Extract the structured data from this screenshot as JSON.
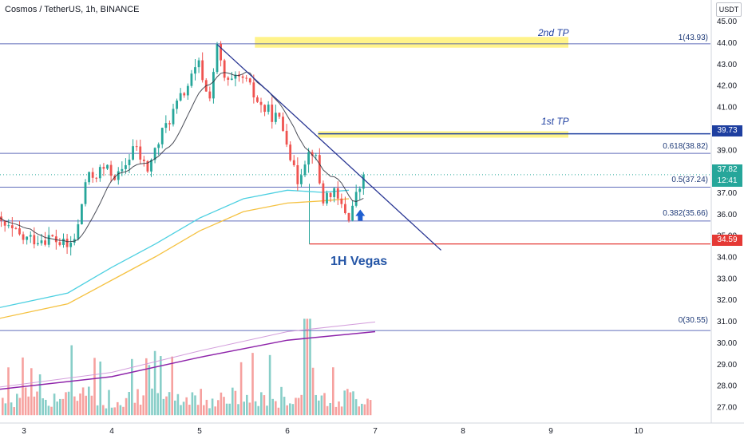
{
  "header": {
    "title": "Cosmos / TetherUS, 1h, BINANCE",
    "currency": "USDT"
  },
  "annotations": {
    "vegas": "1H Vegas",
    "tp1": "1st TP",
    "tp2": "2nd TP"
  },
  "fib_levels": [
    {
      "label": "1(43.93)",
      "price": 43.93
    },
    {
      "label": "0.618(38.82)",
      "price": 38.82
    },
    {
      "label": "0.5(37.24)",
      "price": 37.24
    },
    {
      "label": "0.382(35.66)",
      "price": 35.66
    },
    {
      "label": "0(30.55)",
      "price": 30.55
    }
  ],
  "price_tags": {
    "tp1_level": "39.73",
    "current_price": "37.82",
    "countdown": "12:41",
    "stop_level": "34.59"
  },
  "colors": {
    "bull": "#26a69a",
    "bear": "#ef5350",
    "ema_fast": "#4dd0e1",
    "ema_slow": "#f5c242",
    "fib_line": "#3949ab",
    "trendline": "#283593",
    "tp_zone": "#fff176",
    "stop_line": "#e53935",
    "vol_ma_fast": "#ce93d8",
    "vol_ma_slow": "#8e24aa"
  },
  "chart_data": {
    "type": "candlestick",
    "symbol": "Cosmos / TetherUS",
    "interval": "1h",
    "exchange": "BINANCE",
    "y_axis": {
      "ticks": [
        "45.00",
        "44.00",
        "43.00",
        "42.00",
        "41.00",
        "40.00",
        "39.00",
        "38.00",
        "37.00",
        "36.00",
        "35.00",
        "34.00",
        "33.00",
        "32.00",
        "31.00",
        "30.00",
        "29.00",
        "28.00",
        "27.00"
      ],
      "range": [
        26.5,
        45.4
      ]
    },
    "x_axis": {
      "ticks": [
        "3",
        "4",
        "5",
        "6",
        "7",
        "8",
        "9",
        "10"
      ]
    },
    "ohlc_anchors": [
      {
        "t": 2.7,
        "price": 35.6
      },
      {
        "t": 3.0,
        "price": 34.8
      },
      {
        "t": 3.3,
        "price": 34.9
      },
      {
        "t": 3.5,
        "price": 34.4
      },
      {
        "t": 3.6,
        "price": 35.0
      },
      {
        "t": 3.7,
        "price": 37.5
      },
      {
        "t": 3.9,
        "price": 38.1
      },
      {
        "t": 4.1,
        "price": 37.7
      },
      {
        "t": 4.25,
        "price": 39.2
      },
      {
        "t": 4.4,
        "price": 38.0
      },
      {
        "t": 4.6,
        "price": 40.0
      },
      {
        "t": 4.8,
        "price": 41.5
      },
      {
        "t": 5.0,
        "price": 43.0
      },
      {
        "t": 5.1,
        "price": 41.2
      },
      {
        "t": 5.2,
        "price": 43.7
      },
      {
        "t": 5.3,
        "price": 42.0
      },
      {
        "t": 5.5,
        "price": 42.3
      },
      {
        "t": 5.7,
        "price": 41.0
      },
      {
        "t": 5.9,
        "price": 40.4
      },
      {
        "t": 6.0,
        "price": 39.5
      },
      {
        "t": 6.1,
        "price": 37.4
      },
      {
        "t": 6.2,
        "price": 38.6
      },
      {
        "t": 6.3,
        "price": 39.1
      },
      {
        "t": 6.4,
        "price": 36.6
      },
      {
        "t": 6.5,
        "price": 37.1
      },
      {
        "t": 6.6,
        "price": 36.4
      },
      {
        "t": 6.7,
        "price": 35.9
      },
      {
        "t": 6.8,
        "price": 37.0
      },
      {
        "t": 6.9,
        "price": 37.9
      }
    ],
    "ema_fast": [
      {
        "t": 2.7,
        "price": 31.6
      },
      {
        "t": 3.5,
        "price": 32.3
      },
      {
        "t": 4.0,
        "price": 33.5
      },
      {
        "t": 4.5,
        "price": 34.6
      },
      {
        "t": 5.0,
        "price": 35.8
      },
      {
        "t": 5.5,
        "price": 36.7
      },
      {
        "t": 6.0,
        "price": 37.1
      },
      {
        "t": 6.4,
        "price": 37.0
      },
      {
        "t": 6.7,
        "price": 37.1
      }
    ],
    "ema_slow": [
      {
        "t": 2.7,
        "price": 31.1
      },
      {
        "t": 3.5,
        "price": 31.8
      },
      {
        "t": 4.0,
        "price": 32.9
      },
      {
        "t": 4.5,
        "price": 34.0
      },
      {
        "t": 5.0,
        "price": 35.2
      },
      {
        "t": 5.5,
        "price": 36.1
      },
      {
        "t": 6.0,
        "price": 36.5
      },
      {
        "t": 6.4,
        "price": 36.6
      },
      {
        "t": 6.7,
        "price": 36.7
      }
    ],
    "trendline": [
      {
        "t": 5.2,
        "price": 43.9
      },
      {
        "t": 7.75,
        "price": 34.3
      }
    ],
    "tp_zones": [
      {
        "name": "2nd TP",
        "t_start": 5.63,
        "t_end": 9.2,
        "price_low": 43.75,
        "price_high": 44.25
      },
      {
        "name": "1st TP",
        "t_start": 6.35,
        "t_end": 9.2,
        "price_low": 39.55,
        "price_high": 39.85
      }
    ],
    "stop_line": {
      "t_start": 6.25,
      "price": 34.59
    },
    "current_price": 37.82,
    "volume_ma_fast": [
      {
        "t": 2.7,
        "price": 27.9
      },
      {
        "t": 4.0,
        "price": 28.6
      },
      {
        "t": 5.0,
        "price": 29.6
      },
      {
        "t": 6.0,
        "price": 30.5
      },
      {
        "t": 7.0,
        "price": 30.95
      }
    ],
    "volume_ma_slow": [
      {
        "t": 2.7,
        "price": 27.8
      },
      {
        "t": 4.0,
        "price": 28.4
      },
      {
        "t": 5.0,
        "price": 29.3
      },
      {
        "t": 6.0,
        "price": 30.1
      },
      {
        "t": 7.0,
        "price": 30.5
      }
    ],
    "volume_base_price": 26.6,
    "volume_max_price": 31.1
  }
}
